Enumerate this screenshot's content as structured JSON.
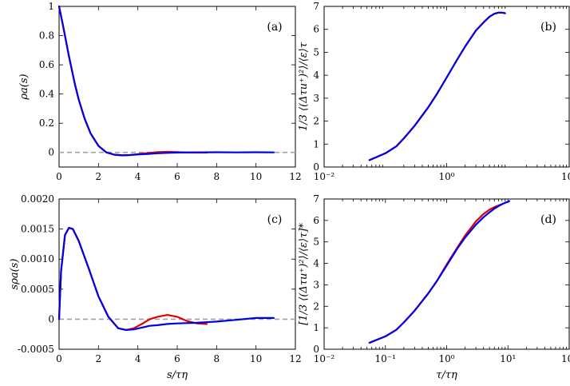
{
  "colors": {
    "blue": "#0000e6",
    "red": "#e00000",
    "ref": "#a0a0a0"
  },
  "chart_data": [
    {
      "id": "a",
      "type": "line",
      "panel_label": "(a)",
      "ylabel": "ρa(s)",
      "xlabel": "",
      "xscale": "linear",
      "xlim": [
        0,
        12
      ],
      "ylim": [
        -0.1,
        1.0
      ],
      "xticks": [
        0,
        2,
        4,
        6,
        8,
        10,
        12
      ],
      "xtick_labels": [
        "0",
        "2",
        "4",
        "6",
        "8",
        "10",
        "12"
      ],
      "yticks": [
        0,
        0.2,
        0.4,
        0.6,
        0.8,
        1
      ],
      "ytick_labels": [
        "0",
        "0.2",
        "0.4",
        "0.6",
        "0.8",
        "1"
      ],
      "reference_line_y": 0,
      "series": [
        {
          "color": "#e00000",
          "x": [
            0,
            0.2,
            0.5,
            0.8,
            1.0,
            1.3,
            1.6,
            2.0,
            2.4,
            2.8,
            3.2,
            3.6,
            4.0,
            4.5,
            5.0,
            5.5,
            6.0,
            6.5,
            7.0,
            7.5
          ],
          "y": [
            1.0,
            0.87,
            0.66,
            0.47,
            0.36,
            0.23,
            0.13,
            0.045,
            0.0,
            -0.015,
            -0.02,
            -0.018,
            -0.012,
            -0.005,
            0.002,
            0.004,
            0.002,
            0.0,
            -0.001,
            -0.001
          ]
        },
        {
          "color": "#0000e6",
          "x": [
            0,
            0.2,
            0.5,
            0.8,
            1.0,
            1.3,
            1.6,
            2.0,
            2.4,
            2.8,
            3.2,
            3.6,
            4.0,
            4.5,
            5.0,
            5.5,
            6.0,
            7.0,
            8.0,
            9.0,
            10.0,
            10.9
          ],
          "y": [
            1.0,
            0.87,
            0.66,
            0.47,
            0.36,
            0.23,
            0.13,
            0.045,
            0.0,
            -0.015,
            -0.02,
            -0.018,
            -0.014,
            -0.01,
            -0.006,
            -0.003,
            -0.001,
            0.0,
            0.001,
            0.0,
            0.001,
            0.0
          ]
        }
      ]
    },
    {
      "id": "b",
      "type": "line",
      "panel_label": "(b)",
      "ylabel": "1/3 ⟨(Δτu⁺)²⟩/⟨ε⟩τ",
      "xlabel": "",
      "xscale": "log",
      "xlim": [
        0.01,
        100
      ],
      "ylim": [
        0,
        7
      ],
      "xticks": [
        0.01,
        1,
        100
      ],
      "xtick_labels": [
        "10⁻²",
        "10⁰",
        "10²"
      ],
      "yticks": [
        0,
        1,
        2,
        3,
        4,
        5,
        6,
        7
      ],
      "ytick_labels": [
        "0",
        "1",
        "2",
        "3",
        "4",
        "5",
        "6",
        "7"
      ],
      "series": [
        {
          "color": "#e00000",
          "x": [
            0.055,
            0.1,
            0.15,
            0.2,
            0.3,
            0.5,
            0.7,
            1.0,
            1.5,
            2.0,
            3.0,
            4.0,
            5.0,
            6.0,
            7.0,
            8.0,
            9.0
          ],
          "y": [
            0.3,
            0.6,
            0.9,
            1.25,
            1.8,
            2.6,
            3.2,
            3.9,
            4.7,
            5.25,
            5.95,
            6.3,
            6.55,
            6.68,
            6.73,
            6.73,
            6.7
          ]
        },
        {
          "color": "#0000e6",
          "x": [
            0.055,
            0.1,
            0.15,
            0.2,
            0.3,
            0.5,
            0.7,
            1.0,
            1.5,
            2.0,
            3.0,
            4.0,
            5.0,
            6.0,
            7.0,
            8.0,
            9.0
          ],
          "y": [
            0.3,
            0.6,
            0.9,
            1.25,
            1.8,
            2.6,
            3.2,
            3.9,
            4.7,
            5.25,
            5.95,
            6.3,
            6.55,
            6.68,
            6.73,
            6.73,
            6.7
          ]
        }
      ]
    },
    {
      "id": "c",
      "type": "line",
      "panel_label": "(c)",
      "ylabel": "sρa(s)",
      "xlabel": "s/τη",
      "xscale": "linear",
      "xlim": [
        0,
        12
      ],
      "ylim": [
        -0.0005,
        0.002
      ],
      "xticks": [
        0,
        2,
        4,
        6,
        8,
        10,
        12
      ],
      "xtick_labels": [
        "0",
        "2",
        "4",
        "6",
        "8",
        "10",
        "12"
      ],
      "yticks": [
        -0.0005,
        0,
        0.0005,
        0.001,
        0.0015,
        0.002
      ],
      "ytick_labels": [
        "-0.0005",
        "0",
        "0.0005",
        "0.0010",
        "0.0015",
        "0.0020"
      ],
      "reference_line_y": 0,
      "series": [
        {
          "color": "#e00000",
          "x": [
            0,
            0.1,
            0.3,
            0.5,
            0.7,
            1.0,
            1.5,
            2.0,
            2.5,
            3.0,
            3.4,
            3.8,
            4.2,
            4.6,
            5.0,
            5.5,
            6.0,
            6.5,
            7.0,
            7.5
          ],
          "y": [
            0.0,
            0.0008,
            0.0014,
            0.00152,
            0.0015,
            0.0013,
            0.00085,
            0.00038,
            4e-05,
            -0.00015,
            -0.00018,
            -0.00015,
            -8e-05,
            0.0,
            4e-05,
            7e-05,
            4e-05,
            -3e-05,
            -7e-05,
            -8e-05
          ]
        },
        {
          "color": "#0000e6",
          "x": [
            0,
            0.1,
            0.3,
            0.5,
            0.7,
            1.0,
            1.5,
            2.0,
            2.5,
            3.0,
            3.4,
            3.8,
            4.2,
            4.6,
            5.0,
            5.5,
            6.0,
            7.0,
            8.0,
            9.0,
            10.0,
            10.9
          ],
          "y": [
            0.0,
            0.0008,
            0.0014,
            0.00152,
            0.0015,
            0.0013,
            0.00085,
            0.00038,
            4e-05,
            -0.00015,
            -0.00018,
            -0.00017,
            -0.00014,
            -0.00011,
            -0.0001,
            -8e-05,
            -7e-05,
            -6e-05,
            -4e-05,
            -1e-05,
            2e-05,
            2e-05
          ]
        }
      ]
    },
    {
      "id": "d",
      "type": "line",
      "panel_label": "(d)",
      "ylabel": "[1/3 ⟨(Δτu⁺)²⟩/⟨ε⟩τ]*",
      "xlabel": "τ/τη",
      "xscale": "log",
      "xlim": [
        0.01,
        100
      ],
      "ylim": [
        0,
        7
      ],
      "xticks": [
        0.01,
        0.1,
        1,
        10,
        100
      ],
      "xtick_labels": [
        "10⁻²",
        "10⁻¹",
        "10⁰",
        "10¹",
        "10²"
      ],
      "yticks": [
        0,
        1,
        2,
        3,
        4,
        5,
        6,
        7
      ],
      "ytick_labels": [
        "0",
        "1",
        "2",
        "3",
        "4",
        "5",
        "6",
        "7"
      ],
      "series": [
        {
          "color": "#e00000",
          "x": [
            0.055,
            0.1,
            0.15,
            0.2,
            0.3,
            0.5,
            0.7,
            1.0,
            1.5,
            2.0,
            3.0,
            4.0,
            5.0,
            6.0,
            7.0,
            8.0
          ],
          "y": [
            0.3,
            0.6,
            0.9,
            1.25,
            1.8,
            2.6,
            3.2,
            3.95,
            4.75,
            5.3,
            5.95,
            6.3,
            6.5,
            6.62,
            6.7,
            6.75
          ]
        },
        {
          "color": "#0000e6",
          "x": [
            0.055,
            0.1,
            0.15,
            0.2,
            0.3,
            0.5,
            0.7,
            1.0,
            1.5,
            2.0,
            3.0,
            4.0,
            5.0,
            6.0,
            7.0,
            8.0,
            9.0,
            10.5
          ],
          "y": [
            0.3,
            0.6,
            0.9,
            1.25,
            1.8,
            2.6,
            3.2,
            3.9,
            4.7,
            5.2,
            5.8,
            6.15,
            6.38,
            6.55,
            6.67,
            6.76,
            6.82,
            6.9
          ]
        }
      ]
    }
  ]
}
